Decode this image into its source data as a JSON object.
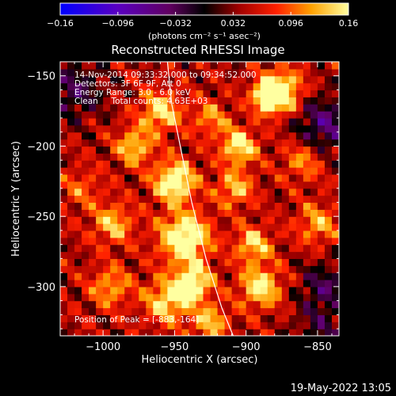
{
  "chart_data": {
    "type": "heatmap",
    "title": "Reconstructed RHESSI Image",
    "xlabel": "Heliocentric X (arcsec)",
    "ylabel": "Heliocentric Y (arcsec)",
    "xlim": [
      -1030,
      -835
    ],
    "ylim": [
      -335,
      -140
    ],
    "x_ticks": [
      -1000,
      -950,
      -900,
      -850
    ],
    "x_tick_labels": [
      "−1000",
      "−950",
      "−900",
      "−850"
    ],
    "y_ticks": [
      -150,
      -200,
      -250,
      -300
    ],
    "y_tick_labels": [
      "−150",
      "−200",
      "−250",
      "−300"
    ],
    "colorbar": {
      "min": -0.16,
      "max": 0.16,
      "ticks": [
        -0.16,
        -0.096,
        -0.032,
        0.032,
        0.096,
        0.16
      ],
      "tick_labels": [
        "−0.16",
        "−0.096",
        "−0.032",
        "0.032",
        "0.096",
        "0.16"
      ],
      "units_label": "(photons cm⁻² s⁻¹ asec⁻²)"
    },
    "annotations": [
      "14-Nov-2014 09:33:32.000 to 09:34:52.000",
      "Detectors: 3F 6F 9F, Att 0",
      "Energy Range: 3.0 - 6.0 keV",
      "Clean     Total counts: 4.63E+03"
    ],
    "peak_label": "Position of Peak = [-883,-164]",
    "peak_position": [
      -883,
      -164
    ],
    "limb_curve": {
      "x": [
        -955,
        -952,
        -946,
        -938,
        -928,
        -917,
        -909
      ],
      "y": [
        -140,
        -170,
        -200,
        -240,
        -280,
        -315,
        -335
      ]
    },
    "pixel_size_arcsec": 5,
    "sources": [
      {
        "x": -950,
        "y": -225,
        "amp": 0.15,
        "sigma": 10
      },
      {
        "x": -943,
        "y": -265,
        "amp": 0.16,
        "sigma": 12
      },
      {
        "x": -960,
        "y": -175,
        "amp": 0.11,
        "sigma": 10
      },
      {
        "x": -937,
        "y": -297,
        "amp": 0.13,
        "sigma": 9
      },
      {
        "x": -883,
        "y": -164,
        "amp": 0.16,
        "sigma": 8
      },
      {
        "x": -875,
        "y": -160,
        "amp": 0.12,
        "sigma": 10
      },
      {
        "x": -905,
        "y": -200,
        "amp": 0.12,
        "sigma": 9
      },
      {
        "x": -908,
        "y": -230,
        "amp": 0.09,
        "sigma": 9
      },
      {
        "x": -955,
        "y": -310,
        "amp": 0.11,
        "sigma": 11
      },
      {
        "x": -993,
        "y": -255,
        "amp": 0.09,
        "sigma": 10
      },
      {
        "x": -978,
        "y": -200,
        "amp": 0.1,
        "sigma": 9
      },
      {
        "x": -890,
        "y": -300,
        "amp": 0.12,
        "sigma": 10
      },
      {
        "x": -895,
        "y": -270,
        "amp": 0.1,
        "sigma": 9
      },
      {
        "x": -850,
        "y": -255,
        "amp": 0.08,
        "sigma": 10
      },
      {
        "x": -860,
        "y": -210,
        "amp": 0.07,
        "sigma": 10
      },
      {
        "x": -995,
        "y": -300,
        "amp": 0.08,
        "sigma": 10
      },
      {
        "x": -1015,
        "y": -230,
        "amp": 0.05,
        "sigma": 10
      },
      {
        "x": -925,
        "y": -180,
        "amp": 0.07,
        "sigma": 9
      },
      {
        "x": -925,
        "y": -325,
        "amp": 0.09,
        "sigma": 9
      },
      {
        "x": -1020,
        "y": -160,
        "amp": -0.07,
        "sigma": 14
      },
      {
        "x": -845,
        "y": -185,
        "amp": -0.09,
        "sigma": 14
      },
      {
        "x": -845,
        "y": -300,
        "amp": -0.07,
        "sigma": 12
      },
      {
        "x": -848,
        "y": -330,
        "amp": -0.05,
        "sigma": 12
      }
    ],
    "background_level": 0.045
  },
  "footer": {
    "date": "19-May-2022 13:05"
  }
}
